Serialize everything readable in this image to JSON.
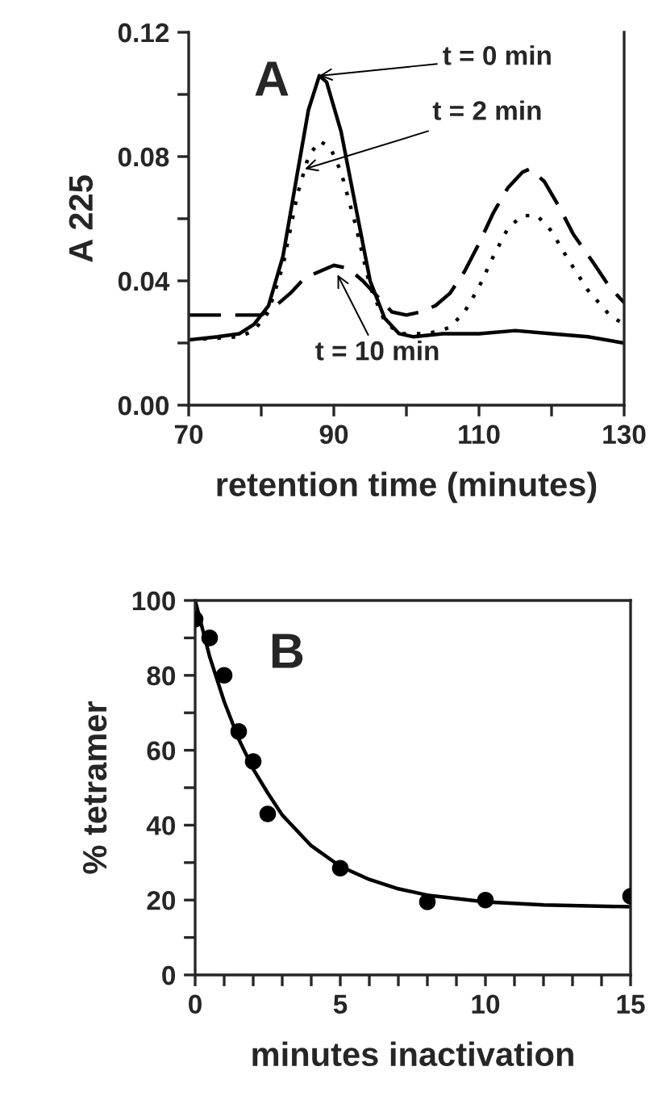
{
  "chart_data": [
    {
      "type": "line",
      "xlabel": "retention time (minutes)",
      "ylabel": "A 225",
      "xlim": [
        70,
        130
      ],
      "ylim": [
        0,
        0.12
      ],
      "xticks": [
        70,
        {
          "value": 80,
          "label": null
        },
        90,
        {
          "value": 100,
          "label": null
        },
        110,
        {
          "value": 120,
          "label": null
        },
        130
      ],
      "yticks": [
        {
          "value": 0,
          "label": "0.00"
        },
        {
          "value": 0.02,
          "label": null
        },
        {
          "value": 0.04,
          "label": "0.04"
        },
        {
          "value": 0.06,
          "label": null
        },
        {
          "value": 0.08,
          "label": "0.08"
        },
        {
          "value": 0.1,
          "label": null
        },
        {
          "value": 0.12,
          "label": "0.12"
        }
      ],
      "series": [
        {
          "color": "#000000",
          "line_style": "solid",
          "x": [
            70,
            74,
            77,
            79,
            81,
            83,
            85,
            86.5,
            88,
            89,
            91,
            93,
            95,
            97,
            99,
            101,
            105,
            110,
            115,
            120,
            125,
            130
          ],
          "values": [
            0.021,
            0.022,
            0.023,
            0.026,
            0.032,
            0.048,
            0.075,
            0.095,
            0.106,
            0.104,
            0.088,
            0.064,
            0.04,
            0.028,
            0.023,
            0.022,
            0.023,
            0.023,
            0.024,
            0.023,
            0.022,
            0.02
          ]
        },
        {
          "color": "#000000",
          "line_style": "dotted",
          "x": [
            70,
            77,
            79,
            81,
            83,
            85,
            86.5,
            88,
            89.5,
            91,
            93,
            95,
            97,
            99,
            103,
            106,
            108,
            110,
            112,
            114,
            116,
            118,
            120,
            122,
            125,
            128,
            130
          ],
          "values": [
            0.021,
            0.022,
            0.024,
            0.03,
            0.045,
            0.068,
            0.08,
            0.085,
            0.083,
            0.075,
            0.058,
            0.038,
            0.027,
            0.023,
            0.023,
            0.025,
            0.03,
            0.038,
            0.048,
            0.057,
            0.061,
            0.061,
            0.056,
            0.048,
            0.037,
            0.029,
            0.026
          ]
        },
        {
          "color": "#000000",
          "line_style": "dashed",
          "x": [
            70,
            77,
            80,
            82,
            84,
            86,
            88,
            90,
            92,
            94,
            96,
            98,
            100,
            102,
            104,
            106,
            108,
            110,
            112,
            114,
            116,
            117,
            119,
            121,
            123,
            126,
            128,
            130
          ],
          "values": [
            0.029,
            0.029,
            0.029,
            0.032,
            0.036,
            0.041,
            0.043,
            0.045,
            0.044,
            0.04,
            0.035,
            0.03,
            0.029,
            0.03,
            0.032,
            0.036,
            0.043,
            0.052,
            0.062,
            0.07,
            0.075,
            0.076,
            0.072,
            0.064,
            0.055,
            0.045,
            0.038,
            0.033
          ]
        }
      ],
      "annotations": [
        "A",
        {
          "text": "t = 0 min",
          "x": 88,
          "y": 0.106
        },
        {
          "text": "t = 2 min",
          "x": 86,
          "y": 0.076
        },
        {
          "text": "t = 10 min",
          "x": 90.5,
          "y": 0.042
        }
      ]
    },
    {
      "type": "scatter",
      "xlabel": "minutes inactivation",
      "ylabel": "% tetramer",
      "xlim": [
        0,
        15
      ],
      "ylim": [
        0,
        100
      ],
      "xticks": [
        0,
        {
          "value": 1,
          "label": null
        },
        {
          "value": 2,
          "label": null
        },
        {
          "value": 3,
          "label": null
        },
        {
          "value": 4,
          "label": null
        },
        5,
        {
          "value": 6,
          "label": null
        },
        {
          "value": 7,
          "label": null
        },
        {
          "value": 8,
          "label": null
        },
        {
          "value": 9,
          "label": null
        },
        10,
        {
          "value": 11,
          "label": null
        },
        {
          "value": 12,
          "label": null
        },
        {
          "value": 13,
          "label": null
        },
        {
          "value": 14,
          "label": null
        },
        15
      ],
      "yticks": [
        0,
        {
          "value": 10,
          "label": null
        },
        20,
        {
          "value": 30,
          "label": null
        },
        40,
        {
          "value": 50,
          "label": null
        },
        60,
        {
          "value": 70,
          "label": null
        },
        80,
        {
          "value": 90,
          "label": null
        },
        100
      ],
      "series": [
        {
          "type": "scatter",
          "marker": "circle",
          "color": "#000000",
          "x": [
            0,
            0.5,
            1,
            1.5,
            2,
            2.5,
            5,
            8,
            10,
            15
          ],
          "values": [
            95,
            90,
            80,
            65,
            57,
            43,
            28.5,
            19.5,
            20,
            21
          ]
        },
        {
          "type": "line",
          "color": "#000000",
          "line_style": "solid",
          "x": [
            0,
            0.5,
            1,
            1.5,
            2,
            2.5,
            3,
            4,
            5,
            6,
            7,
            8,
            10,
            12,
            15
          ],
          "values": [
            100,
            85,
            73,
            63,
            55,
            48.6,
            42.7,
            34.5,
            29,
            25.5,
            23,
            21.3,
            19.5,
            18.7,
            18.2
          ]
        }
      ],
      "annotations": [
        "B"
      ]
    }
  ]
}
